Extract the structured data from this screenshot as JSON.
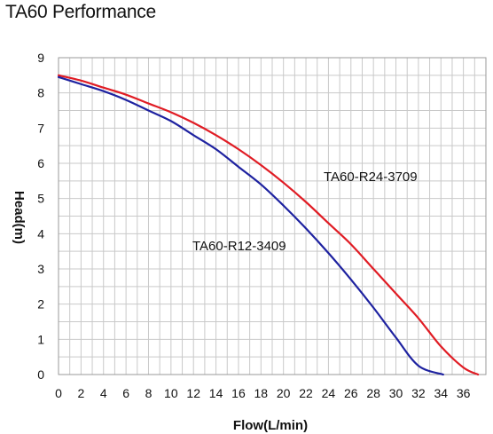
{
  "chart_data": {
    "type": "line",
    "title": "TA60 Performance",
    "xlabel": "Flow(L/min)",
    "ylabel": "Head(m)",
    "xlim": [
      0,
      38
    ],
    "ylim": [
      0,
      9
    ],
    "x_ticks": [
      "0",
      "2",
      "4",
      "6",
      "8",
      "10",
      "12",
      "14",
      "16",
      "18",
      "20",
      "22",
      "24",
      "26",
      "28",
      "30",
      "32",
      "34",
      "36"
    ],
    "y_ticks": [
      "0",
      "1",
      "2",
      "3",
      "4",
      "5",
      "6",
      "7",
      "8",
      "9"
    ],
    "grid": true,
    "series": [
      {
        "name": "TA60-R24-3709",
        "color": "#e01c24",
        "x": [
          0,
          2,
          4,
          6,
          8,
          10,
          12,
          14,
          16,
          18,
          20,
          22,
          24,
          26,
          28,
          30,
          32,
          34,
          36,
          37.3
        ],
        "y": [
          8.5,
          8.35,
          8.15,
          7.95,
          7.7,
          7.45,
          7.15,
          6.8,
          6.4,
          5.95,
          5.45,
          4.9,
          4.3,
          3.7,
          3.0,
          2.3,
          1.6,
          0.8,
          0.2,
          0
        ]
      },
      {
        "name": "TA60-R12-3409",
        "color": "#1e22a0",
        "x": [
          0,
          2,
          4,
          6,
          8,
          10,
          12,
          14,
          16,
          18,
          20,
          22,
          24,
          26,
          28,
          30,
          32,
          34.2
        ],
        "y": [
          8.45,
          8.25,
          8.05,
          7.8,
          7.5,
          7.2,
          6.8,
          6.4,
          5.9,
          5.4,
          4.8,
          4.15,
          3.45,
          2.7,
          1.9,
          1.05,
          0.25,
          0
        ]
      }
    ]
  }
}
